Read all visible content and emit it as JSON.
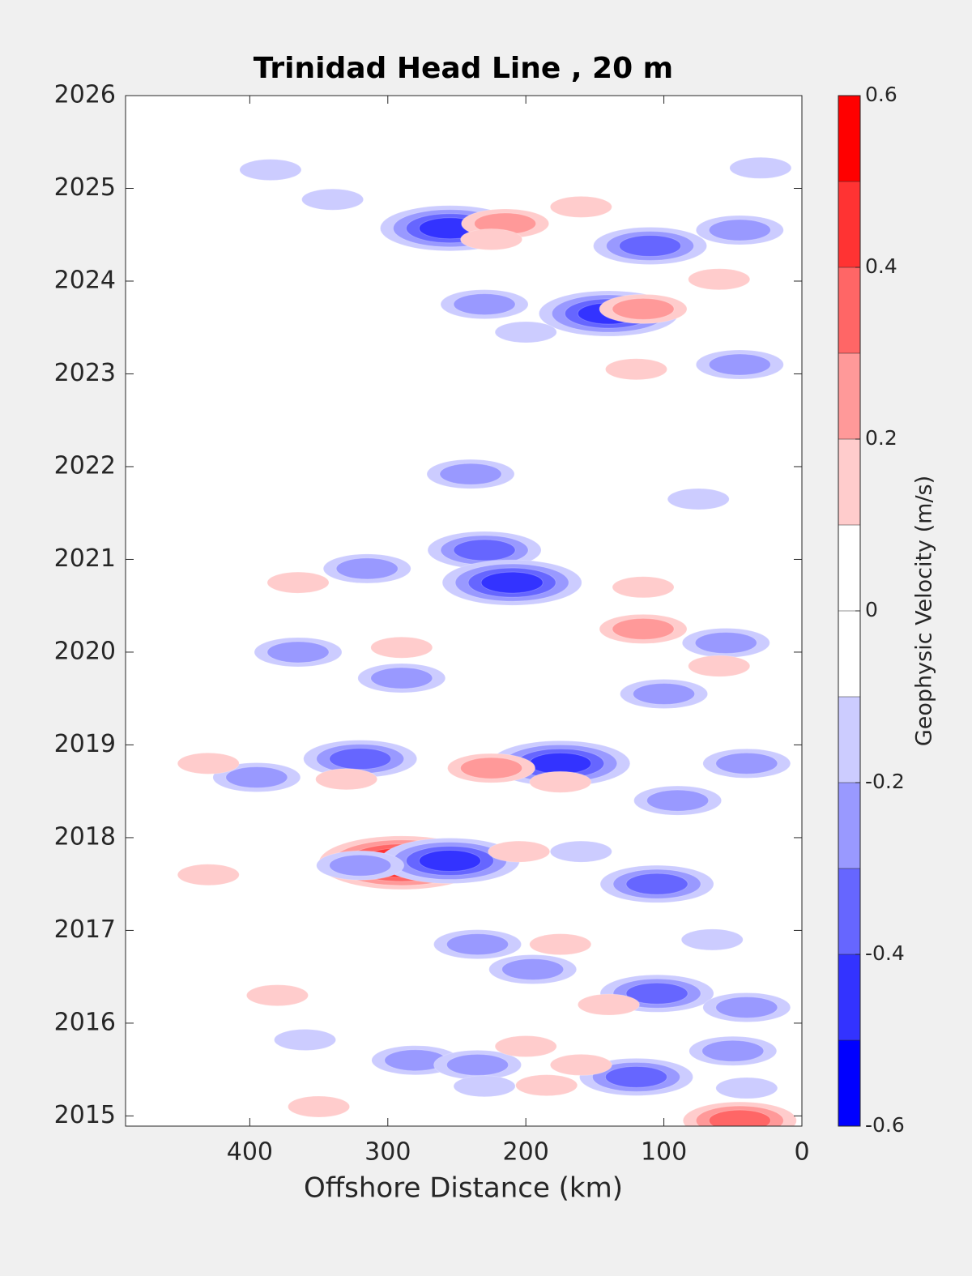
{
  "chart_data": {
    "type": "contour",
    "title": "Trinidad Head Line , 20 m",
    "xlabel": "Offshore Distance (km)",
    "xlim": [
      490,
      0
    ],
    "xticks": [
      400,
      300,
      200,
      100,
      0
    ],
    "ylim": [
      2014.89,
      2026
    ],
    "yticks": [
      2015,
      2016,
      2017,
      2018,
      2019,
      2020,
      2021,
      2022,
      2023,
      2024,
      2025,
      2026
    ],
    "colorbar": {
      "label": "Geophysic Velocity (m/s)",
      "levels": [
        -0.6,
        -0.5,
        -0.4,
        -0.3,
        -0.2,
        -0.1,
        0,
        0.1,
        0.2,
        0.3,
        0.4,
        0.5,
        0.6
      ],
      "colors": [
        "#0000ff",
        "#3333ff",
        "#6666ff",
        "#9999ff",
        "#ccccff",
        "#ffffff",
        "#ffffff",
        "#ffcccc",
        "#ff9999",
        "#ff6666",
        "#ff3333",
        "#ff0000"
      ],
      "ticks": [
        -0.6,
        -0.4,
        -0.2,
        0,
        0.2,
        0.4,
        0.6
      ]
    },
    "features": [
      {
        "x": 255,
        "y": 2024.57,
        "value": -0.5
      },
      {
        "x": 215,
        "y": 2024.62,
        "value": 0.3
      },
      {
        "x": 110,
        "y": 2024.38,
        "value": -0.4
      },
      {
        "x": 140,
        "y": 2023.65,
        "value": -0.5
      },
      {
        "x": 115,
        "y": 2023.7,
        "value": 0.3
      },
      {
        "x": 45,
        "y": 2024.55,
        "value": -0.3
      },
      {
        "x": 30,
        "y": 2025.22,
        "value": -0.2
      },
      {
        "x": 340,
        "y": 2024.88,
        "value": -0.2
      },
      {
        "x": 385,
        "y": 2025.2,
        "value": -0.2
      },
      {
        "x": 225,
        "y": 2024.45,
        "value": 0.2
      },
      {
        "x": 60,
        "y": 2024.02,
        "value": 0.2
      },
      {
        "x": 230,
        "y": 2023.75,
        "value": -0.3
      },
      {
        "x": 200,
        "y": 2023.45,
        "value": -0.2
      },
      {
        "x": 120,
        "y": 2023.05,
        "value": 0.2
      },
      {
        "x": 45,
        "y": 2023.1,
        "value": -0.3
      },
      {
        "x": 160,
        "y": 2024.8,
        "value": 0.2
      },
      {
        "x": 240,
        "y": 2021.92,
        "value": -0.3
      },
      {
        "x": 75,
        "y": 2021.65,
        "value": -0.2
      },
      {
        "x": 230,
        "y": 2021.1,
        "value": -0.4
      },
      {
        "x": 210,
        "y": 2020.75,
        "value": -0.5
      },
      {
        "x": 315,
        "y": 2020.9,
        "value": -0.3
      },
      {
        "x": 115,
        "y": 2020.7,
        "value": 0.2
      },
      {
        "x": 365,
        "y": 2020.75,
        "value": 0.2
      },
      {
        "x": 115,
        "y": 2020.25,
        "value": 0.3
      },
      {
        "x": 55,
        "y": 2020.1,
        "value": -0.3
      },
      {
        "x": 365,
        "y": 2020.0,
        "value": -0.3
      },
      {
        "x": 290,
        "y": 2019.72,
        "value": -0.3
      },
      {
        "x": 100,
        "y": 2019.55,
        "value": -0.3
      },
      {
        "x": 290,
        "y": 2020.05,
        "value": 0.2
      },
      {
        "x": 60,
        "y": 2019.85,
        "value": 0.2
      },
      {
        "x": 320,
        "y": 2018.85,
        "value": -0.4
      },
      {
        "x": 175,
        "y": 2018.8,
        "value": -0.5
      },
      {
        "x": 225,
        "y": 2018.75,
        "value": 0.3
      },
      {
        "x": 395,
        "y": 2018.65,
        "value": -0.3
      },
      {
        "x": 40,
        "y": 2018.8,
        "value": -0.3
      },
      {
        "x": 330,
        "y": 2018.63,
        "value": 0.2
      },
      {
        "x": 430,
        "y": 2018.8,
        "value": 0.2
      },
      {
        "x": 175,
        "y": 2018.6,
        "value": 0.2
      },
      {
        "x": 90,
        "y": 2018.4,
        "value": -0.3
      },
      {
        "x": 290,
        "y": 2017.73,
        "value": 0.6
      },
      {
        "x": 255,
        "y": 2017.75,
        "value": -0.5
      },
      {
        "x": 320,
        "y": 2017.7,
        "value": -0.3
      },
      {
        "x": 105,
        "y": 2017.5,
        "value": -0.4
      },
      {
        "x": 160,
        "y": 2017.85,
        "value": -0.2
      },
      {
        "x": 430,
        "y": 2017.6,
        "value": 0.2
      },
      {
        "x": 205,
        "y": 2017.85,
        "value": 0.2
      },
      {
        "x": 235,
        "y": 2016.85,
        "value": -0.3
      },
      {
        "x": 175,
        "y": 2016.85,
        "value": 0.2
      },
      {
        "x": 195,
        "y": 2016.58,
        "value": -0.3
      },
      {
        "x": 105,
        "y": 2016.32,
        "value": -0.4
      },
      {
        "x": 40,
        "y": 2016.17,
        "value": -0.3
      },
      {
        "x": 140,
        "y": 2016.2,
        "value": 0.2
      },
      {
        "x": 380,
        "y": 2016.3,
        "value": 0.2
      },
      {
        "x": 65,
        "y": 2016.9,
        "value": -0.2
      },
      {
        "x": 360,
        "y": 2015.82,
        "value": -0.2
      },
      {
        "x": 280,
        "y": 2015.6,
        "value": -0.3
      },
      {
        "x": 120,
        "y": 2015.42,
        "value": -0.4
      },
      {
        "x": 50,
        "y": 2015.7,
        "value": -0.3
      },
      {
        "x": 45,
        "y": 2014.95,
        "value": 0.4
      },
      {
        "x": 235,
        "y": 2015.55,
        "value": -0.3
      },
      {
        "x": 200,
        "y": 2015.75,
        "value": 0.2
      },
      {
        "x": 160,
        "y": 2015.55,
        "value": 0.2
      },
      {
        "x": 185,
        "y": 2015.33,
        "value": 0.2
      },
      {
        "x": 230,
        "y": 2015.32,
        "value": -0.2
      },
      {
        "x": 350,
        "y": 2015.1,
        "value": 0.2
      },
      {
        "x": 40,
        "y": 2015.3,
        "value": -0.2
      }
    ]
  }
}
